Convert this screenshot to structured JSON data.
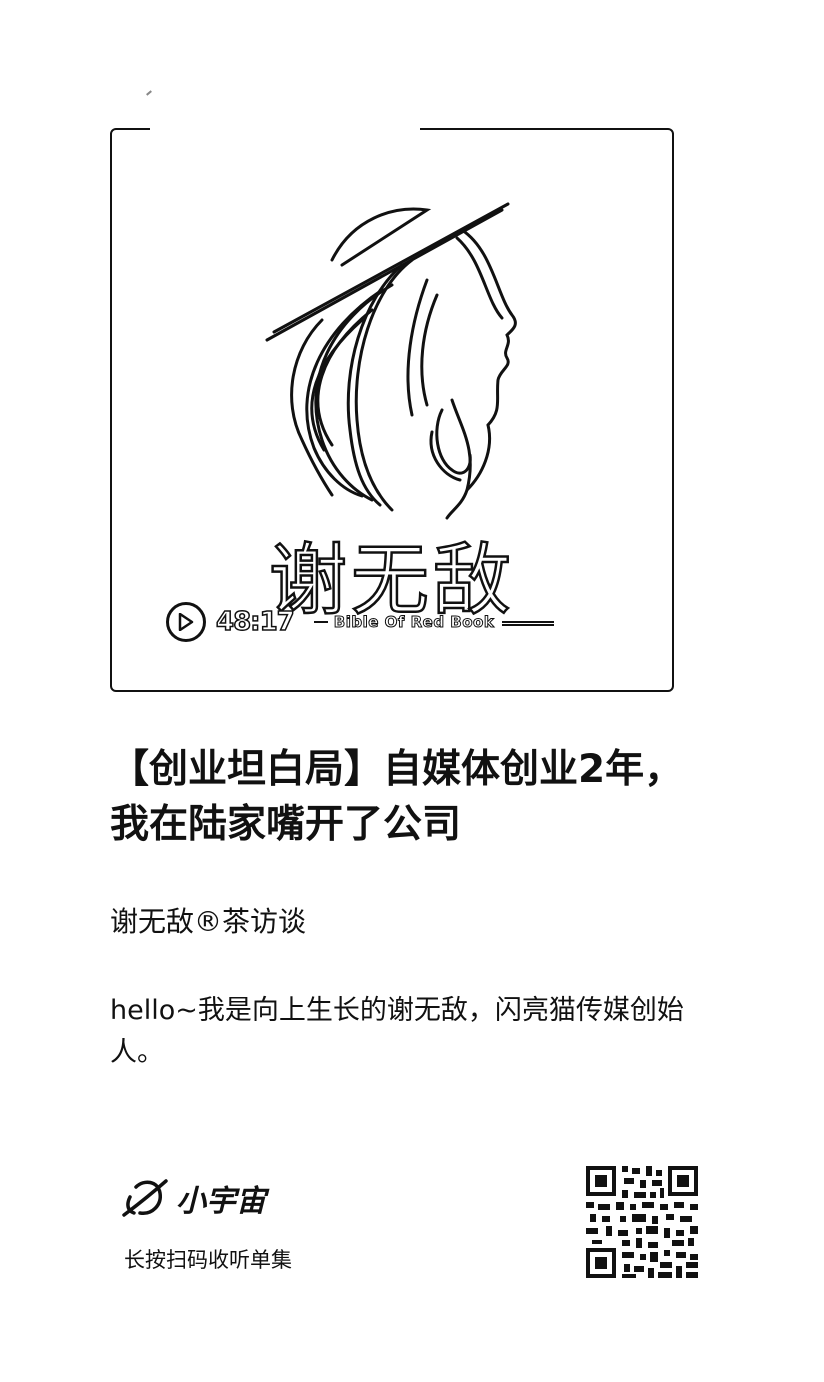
{
  "cover": {
    "name": "谢无敌",
    "duration": "48:17",
    "subtitle": "Bible Of Red Book"
  },
  "episode": {
    "title": "【创业坦白局】自媒体创业2年，我在陆家嘴开了公司",
    "channel": "谢无敌®茶访谈",
    "description": "hello~我是向上生长的谢无敌，闪亮猫传媒创始人。"
  },
  "footer": {
    "brand": "小宇宙",
    "hint": "长按扫码收听单集"
  },
  "colors": {
    "ink": "#111111",
    "background": "#ffffff"
  },
  "icons": [
    "play-icon",
    "planet-logo-icon",
    "qr-code-icon"
  ]
}
